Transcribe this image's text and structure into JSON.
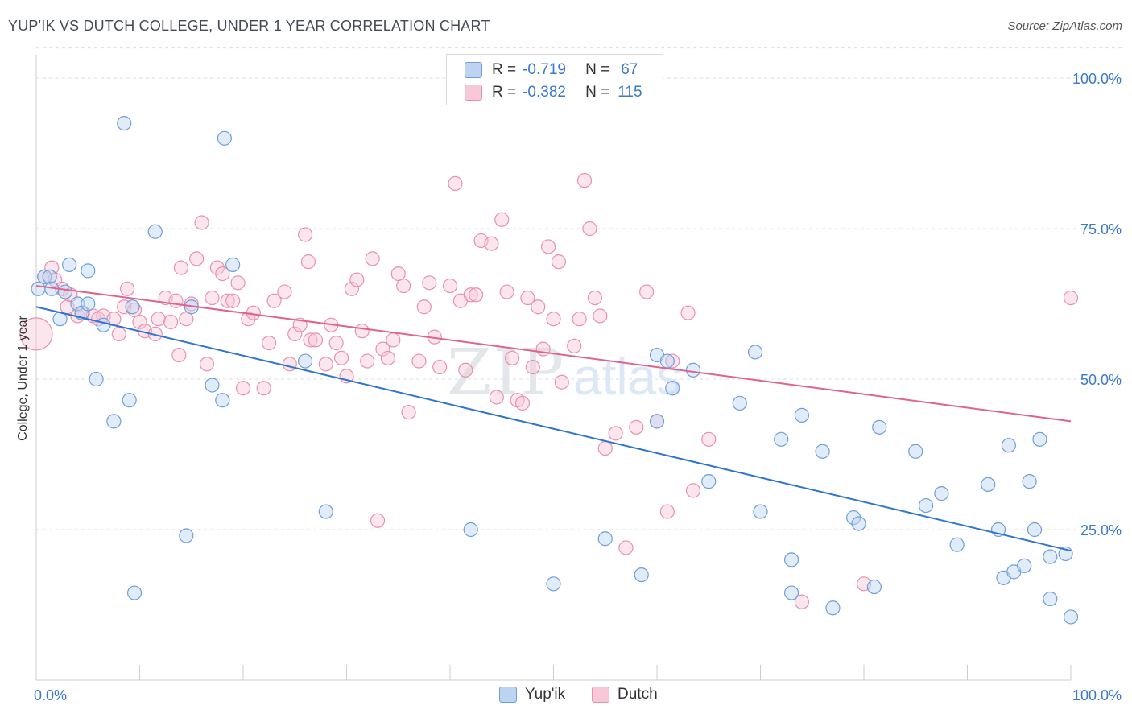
{
  "title": "YUP'IK VS DUTCH COLLEGE, UNDER 1 YEAR CORRELATION CHART",
  "source": "Source: ZipAtlas.com",
  "legend": {
    "blue": {
      "r_label": "R =",
      "r_value": "-0.719",
      "n_label": "N =",
      "n_value": "67"
    },
    "pink": {
      "r_label": "R =",
      "r_value": "-0.382",
      "n_label": "N =",
      "n_value": "115"
    }
  },
  "bottom_legend": {
    "blue": "Yup'ik",
    "pink": "Dutch"
  },
  "colors": {
    "blue_fill": "#bcd4f2",
    "blue_stroke": "#6f9ed9",
    "blue_line": "#2f74d0",
    "pink_fill": "#f7c8d8",
    "pink_stroke": "#e891ae",
    "pink_line": "#e0638f",
    "axis_text": "#3a78c9",
    "grid": "#dddddd"
  },
  "chart_data": {
    "type": "scatter",
    "title": "YUP'IK VS DUTCH COLLEGE, UNDER 1 YEAR CORRELATION CHART",
    "xlabel": "",
    "ylabel": "College, Under 1 year",
    "xlim": [
      0,
      100
    ],
    "ylim": [
      0,
      105
    ],
    "x_tick_labels": [
      "0.0%",
      "100.0%"
    ],
    "y_ticks": [
      25,
      50,
      75,
      100
    ],
    "y_tick_labels": [
      "25.0%",
      "50.0%",
      "75.0%",
      "100.0%"
    ],
    "watermark": "ZIPatlas",
    "series": [
      {
        "name": "Yup'ik",
        "r": -0.719,
        "n": 67,
        "trend": {
          "x": [
            0,
            100
          ],
          "y": [
            62,
            21.5
          ]
        },
        "points": [
          [
            0.2,
            65
          ],
          [
            0.8,
            67
          ],
          [
            1.3,
            67
          ],
          [
            1.5,
            65
          ],
          [
            2.3,
            60
          ],
          [
            2.8,
            64.5
          ],
          [
            3.2,
            69
          ],
          [
            4,
            62.5
          ],
          [
            4.4,
            61
          ],
          [
            5,
            68
          ],
          [
            5,
            62.5
          ],
          [
            5.8,
            50
          ],
          [
            6.5,
            59
          ],
          [
            7.5,
            43
          ],
          [
            8.5,
            92.5
          ],
          [
            9,
            46.5
          ],
          [
            9.3,
            62
          ],
          [
            9.5,
            14.5
          ],
          [
            11.5,
            74.5
          ],
          [
            14.5,
            24
          ],
          [
            15,
            62
          ],
          [
            17,
            49
          ],
          [
            18,
            46.5
          ],
          [
            18.2,
            90
          ],
          [
            19,
            69
          ],
          [
            26,
            53
          ],
          [
            28,
            28
          ],
          [
            42,
            25
          ],
          [
            50,
            16
          ],
          [
            55,
            23.5
          ],
          [
            58.5,
            17.5
          ],
          [
            60,
            54
          ],
          [
            60,
            43
          ],
          [
            61,
            53
          ],
          [
            61.5,
            48.5
          ],
          [
            63.5,
            51.5
          ],
          [
            65,
            33
          ],
          [
            68,
            46
          ],
          [
            69.5,
            54.5
          ],
          [
            70,
            28
          ],
          [
            72,
            40
          ],
          [
            73,
            20
          ],
          [
            73,
            14.5
          ],
          [
            74,
            44
          ],
          [
            76,
            38
          ],
          [
            77,
            12
          ],
          [
            79,
            27
          ],
          [
            79.5,
            26
          ],
          [
            81,
            15.5
          ],
          [
            81.5,
            42
          ],
          [
            85,
            38
          ],
          [
            86,
            29
          ],
          [
            87.5,
            31
          ],
          [
            89,
            22.5
          ],
          [
            92,
            32.5
          ],
          [
            93,
            25
          ],
          [
            93.5,
            17
          ],
          [
            94,
            39
          ],
          [
            94.5,
            18
          ],
          [
            95.5,
            19
          ],
          [
            96,
            33
          ],
          [
            96.5,
            25
          ],
          [
            97,
            40
          ],
          [
            98,
            20.5
          ],
          [
            98,
            13.5
          ],
          [
            99.5,
            21
          ],
          [
            100,
            10.5
          ]
        ]
      },
      {
        "name": "Dutch",
        "r": -0.382,
        "n": 115,
        "trend": {
          "x": [
            0,
            100
          ],
          "y": [
            65.5,
            43
          ]
        },
        "points": [
          [
            0,
            57.5
          ],
          [
            0.8,
            67
          ],
          [
            1.5,
            68.5
          ],
          [
            1.8,
            66.5
          ],
          [
            2.5,
            65
          ],
          [
            3,
            62
          ],
          [
            3.3,
            64
          ],
          [
            4,
            60.5
          ],
          [
            4.5,
            61
          ],
          [
            5.5,
            60.5
          ],
          [
            6,
            60
          ],
          [
            6.5,
            60.5
          ],
          [
            7.5,
            60
          ],
          [
            8,
            57.5
          ],
          [
            8.5,
            62
          ],
          [
            8.8,
            65
          ],
          [
            9.5,
            61.5
          ],
          [
            10,
            59.5
          ],
          [
            10.5,
            58
          ],
          [
            11.5,
            57.5
          ],
          [
            11.8,
            60
          ],
          [
            12.5,
            63.5
          ],
          [
            13,
            59.5
          ],
          [
            13.5,
            63
          ],
          [
            13.8,
            54
          ],
          [
            14,
            68.5
          ],
          [
            14.5,
            60
          ],
          [
            15,
            62.5
          ],
          [
            15.5,
            70
          ],
          [
            16,
            76
          ],
          [
            16.5,
            52.5
          ],
          [
            17,
            63.5
          ],
          [
            17.5,
            68.5
          ],
          [
            18,
            67.5
          ],
          [
            18.5,
            63
          ],
          [
            19,
            63
          ],
          [
            19.5,
            66
          ],
          [
            20,
            48.5
          ],
          [
            20.5,
            60
          ],
          [
            21,
            61
          ],
          [
            22,
            48.5
          ],
          [
            22.5,
            56
          ],
          [
            23,
            63
          ],
          [
            24,
            64.5
          ],
          [
            24.5,
            52.5
          ],
          [
            25,
            57.5
          ],
          [
            25.5,
            59
          ],
          [
            26,
            74
          ],
          [
            26.3,
            69.5
          ],
          [
            26.5,
            56.5
          ],
          [
            27,
            56.5
          ],
          [
            28,
            52.5
          ],
          [
            28.5,
            59
          ],
          [
            29,
            56
          ],
          [
            29.5,
            53.5
          ],
          [
            30,
            50.5
          ],
          [
            30.5,
            65
          ],
          [
            31,
            66.5
          ],
          [
            31.5,
            58
          ],
          [
            32,
            53
          ],
          [
            32.5,
            70
          ],
          [
            33,
            26.5
          ],
          [
            33.5,
            55
          ],
          [
            34,
            53.5
          ],
          [
            34.5,
            56.5
          ],
          [
            35,
            67.5
          ],
          [
            35.5,
            65.5
          ],
          [
            36,
            44.5
          ],
          [
            37,
            53
          ],
          [
            37.5,
            62
          ],
          [
            38,
            66
          ],
          [
            38.5,
            57
          ],
          [
            39,
            52
          ],
          [
            40,
            65.5
          ],
          [
            40.5,
            82.5
          ],
          [
            41,
            63
          ],
          [
            41.5,
            51.5
          ],
          [
            42,
            64
          ],
          [
            42.5,
            64
          ],
          [
            43,
            73
          ],
          [
            44,
            72.5
          ],
          [
            44.5,
            47
          ],
          [
            45,
            76.5
          ],
          [
            45.5,
            64.5
          ],
          [
            46,
            53.5
          ],
          [
            46.5,
            46.5
          ],
          [
            47,
            46
          ],
          [
            47.5,
            63.5
          ],
          [
            48,
            52
          ],
          [
            48.5,
            62
          ],
          [
            49,
            55
          ],
          [
            49.5,
            72
          ],
          [
            50,
            60
          ],
          [
            50.5,
            69.5
          ],
          [
            50.8,
            49.5
          ],
          [
            52,
            55.5
          ],
          [
            52.5,
            60
          ],
          [
            53,
            83
          ],
          [
            53.5,
            75
          ],
          [
            54,
            63.5
          ],
          [
            54.5,
            60.5
          ],
          [
            55,
            38.5
          ],
          [
            56,
            41
          ],
          [
            57,
            22
          ],
          [
            58,
            42
          ],
          [
            59,
            64.5
          ],
          [
            60,
            43
          ],
          [
            61,
            28
          ],
          [
            61.5,
            53
          ],
          [
            63,
            61
          ],
          [
            63.5,
            31.5
          ],
          [
            65,
            40
          ],
          [
            74,
            13
          ],
          [
            80,
            16
          ],
          [
            100,
            63.5
          ]
        ]
      }
    ]
  }
}
